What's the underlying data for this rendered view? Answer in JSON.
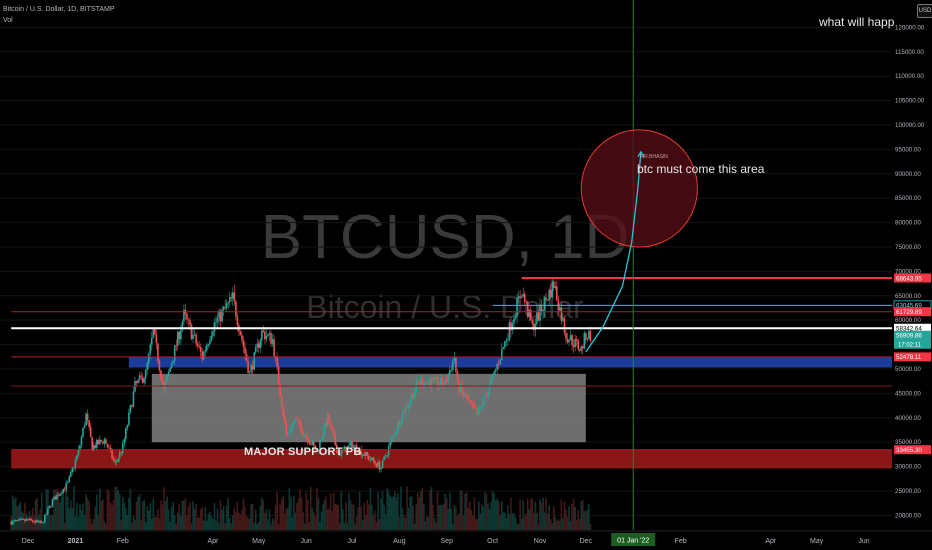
{
  "header": {
    "symbol_line": "Bitcoin / U.S. Dollar, 1D, BITSTAMP",
    "vol_label": "Vol"
  },
  "currency_badge": "USD",
  "top_right_text": "what will happ",
  "watermark": {
    "ticker": "BTCUSD, 1D",
    "name": "Bitcoin / U.S. Dollar"
  },
  "annotations": {
    "target_text": "btc must come this area",
    "author_tag": "MR.BHASIN",
    "support_label": "MAJOR SUPPORT PB"
  },
  "colors": {
    "background": "#000000",
    "up_candle": "#26a69a",
    "down_candle": "#ef5350",
    "support_zone": "#b71c1c",
    "blue_zone": "#1e3fa3",
    "gray_zone": "#8a8a8a",
    "projection": "#26c6da"
  },
  "chart_data": {
    "type": "candlestick",
    "ylim": [
      17000,
      125000
    ],
    "y_ticks": [
      120000,
      115000,
      110000,
      105000,
      100000,
      95000,
      90000,
      85000,
      80000,
      75000,
      70000,
      65000,
      60000,
      55000,
      50000,
      45000,
      40000,
      35000,
      30000,
      25000,
      20000
    ],
    "y_tick_labels": [
      "120000.00",
      "115000.00",
      "110000.00",
      "105000.00",
      "100000.00",
      "95000.00",
      "90000.00",
      "85000.00",
      "80000.00",
      "75000.00",
      "70000.00",
      "65000.00",
      "60000.00",
      "55000.00",
      "50000.00",
      "45000.00",
      "40000.00",
      "35000.00",
      "30000.00",
      "25000.00",
      "20000.00"
    ],
    "x_axis": [
      {
        "label": "Dec",
        "date": "2020-12-01"
      },
      {
        "label": "2021",
        "date": "2021-01-01"
      },
      {
        "label": "Feb",
        "date": "2021-02-01"
      },
      {
        "label": "Apr",
        "date": "2021-04-01"
      },
      {
        "label": "May",
        "date": "2021-05-01"
      },
      {
        "label": "Jun",
        "date": "2021-06-01"
      },
      {
        "label": "Jul",
        "date": "2021-07-01"
      },
      {
        "label": "Aug",
        "date": "2021-08-01"
      },
      {
        "label": "Sep",
        "date": "2021-09-01"
      },
      {
        "label": "Oct",
        "date": "2021-10-01"
      },
      {
        "label": "Nov",
        "date": "2021-11-01"
      },
      {
        "label": "Dec",
        "date": "2021-12-01"
      },
      {
        "label": "Feb",
        "date": "2022-02-01"
      },
      {
        "label": "Apr",
        "date": "2022-04-01"
      },
      {
        "label": "May",
        "date": "2022-05-01"
      },
      {
        "label": "Jun",
        "date": "2022-06-01"
      }
    ],
    "cursor_date_label": "01 Jan '22",
    "cursor_date": "2022-01-01",
    "price_tags": [
      {
        "label": "68643.95",
        "value": 68643.95,
        "bg": "#f23645",
        "fg": "#ffffff"
      },
      {
        "label": "63045.69",
        "value": 63045.69,
        "bg": "#000000",
        "fg": "#7fd8e6",
        "border": "#26c6da"
      },
      {
        "label": "61729.89",
        "value": 61729.89,
        "bg": "#f23645",
        "fg": "#ffffff"
      },
      {
        "label": "58342.64",
        "value": 58342.64,
        "bg": "#ffffff",
        "fg": "#000000"
      },
      {
        "label": "56909.86",
        "value": 56909.86,
        "bg": "#26a69a",
        "fg": "#ffffff",
        "sub": "17:02:11"
      },
      {
        "label": "52478.11",
        "value": 52478.11,
        "bg": "#f23645",
        "fg": "#ffffff"
      },
      {
        "label": "33455.30",
        "value": 33455.3,
        "bg": "#f23645",
        "fg": "#ffffff"
      }
    ],
    "horizontal_lines": [
      {
        "value": 68643.95,
        "color": "#f23645",
        "width": 2,
        "from": "2021-10-20"
      },
      {
        "value": 63045.69,
        "color": "#26c6da",
        "width": 1,
        "from": "2021-10-01"
      },
      {
        "value": 61729.89,
        "color": "#b0202e",
        "width": 1,
        "from": "2020-11-20"
      },
      {
        "value": 58342.64,
        "color": "#ffffff",
        "width": 2,
        "from": "2020-11-20"
      },
      {
        "value": 52478.11,
        "color": "#b0202e",
        "width": 1,
        "from": "2020-11-20"
      },
      {
        "value": 46500,
        "color": "#7a1a22",
        "width": 1,
        "from": "2020-11-20"
      },
      {
        "value": 33455.3,
        "color": "#b0202e",
        "width": 1,
        "from": "2020-11-20"
      }
    ],
    "zones": [
      {
        "name": "major support",
        "from": "2020-11-20",
        "y_low": 29600,
        "y_high": 33455,
        "color": "#b71c1c",
        "opacity": 0.75
      },
      {
        "name": "blue support",
        "from": "2021-02-05",
        "y_low": 50300,
        "y_high": 52400,
        "color": "#1e3fa3",
        "opacity": 0.95
      },
      {
        "name": "gray range",
        "from": "2021-02-20",
        "to": "2021-12-01",
        "y_low": 35000,
        "y_high": 49000,
        "color": "#8a8a8a",
        "opacity": 0.8
      }
    ],
    "target_ellipse": {
      "center_date": "2022-01-05",
      "center_value": 87000,
      "rx_days": 38,
      "ry_value": 12000
    },
    "projection_path": [
      [
        "2021-12-01",
        53500
      ],
      [
        "2021-12-12",
        58500
      ],
      [
        "2021-12-25",
        67000
      ],
      [
        "2021-12-31",
        76000
      ],
      [
        "2022-01-04",
        87000
      ],
      [
        "2022-01-06",
        94500
      ]
    ],
    "price_path": [
      [
        "2020-11-20",
        18600
      ],
      [
        "2020-12-01",
        19000
      ],
      [
        "2020-12-10",
        18300
      ],
      [
        "2020-12-17",
        23000
      ],
      [
        "2020-12-27",
        26500
      ],
      [
        "2021-01-03",
        33000
      ],
      [
        "2021-01-08",
        40500
      ],
      [
        "2021-01-12",
        34000
      ],
      [
        "2021-01-20",
        35500
      ],
      [
        "2021-01-27",
        30500
      ],
      [
        "2021-02-01",
        34000
      ],
      [
        "2021-02-09",
        46500
      ],
      [
        "2021-02-16",
        49000
      ],
      [
        "2021-02-21",
        57500
      ],
      [
        "2021-02-28",
        45500
      ],
      [
        "2021-03-13",
        61000
      ],
      [
        "2021-03-25",
        52500
      ],
      [
        "2021-04-01",
        58800
      ],
      [
        "2021-04-14",
        64500
      ],
      [
        "2021-04-25",
        49000
      ],
      [
        "2021-05-03",
        57500
      ],
      [
        "2021-05-10",
        56000
      ],
      [
        "2021-05-19",
        36500
      ],
      [
        "2021-05-25",
        39500
      ],
      [
        "2021-06-08",
        33000
      ],
      [
        "2021-06-15",
        40000
      ],
      [
        "2021-06-22",
        32500
      ],
      [
        "2021-07-01",
        34500
      ],
      [
        "2021-07-20",
        29800
      ],
      [
        "2021-08-01",
        39500
      ],
      [
        "2021-08-14",
        47500
      ],
      [
        "2021-08-31",
        47000
      ],
      [
        "2021-09-06",
        52500
      ],
      [
        "2021-09-08",
        46500
      ],
      [
        "2021-09-21",
        40500
      ],
      [
        "2021-10-01",
        48000
      ],
      [
        "2021-10-08",
        54500
      ],
      [
        "2021-10-20",
        66000
      ],
      [
        "2021-10-27",
        58500
      ],
      [
        "2021-11-10",
        67500
      ],
      [
        "2021-11-18",
        57000
      ],
      [
        "2021-11-28",
        54000
      ],
      [
        "2021-12-01",
        57000
      ],
      [
        "2021-12-04",
        56900
      ]
    ],
    "volume_scale": "relative"
  }
}
